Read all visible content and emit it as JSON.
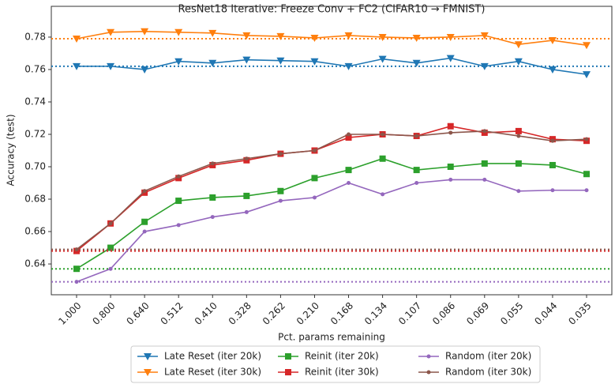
{
  "chart_data": {
    "type": "line",
    "title": "ResNet18 Iterative: Freeze Conv + FC2 (CIFAR10 → FMNIST)",
    "xlabel": "Pct. params remaining",
    "ylabel": "Accuracy (test)",
    "categories": [
      "1.000",
      "0.800",
      "0.640",
      "0.512",
      "0.410",
      "0.328",
      "0.262",
      "0.210",
      "0.168",
      "0.134",
      "0.107",
      "0.086",
      "0.069",
      "0.055",
      "0.044",
      "0.035"
    ],
    "ylim": [
      0.621,
      0.799
    ],
    "yticks": [
      0.64,
      0.66,
      0.68,
      {
        "value": 0.7,
        "label": "0.70"
      },
      0.72,
      0.74,
      0.76,
      0.78
    ],
    "legend": "bottom",
    "series": [
      {
        "name": "Late Reset (iter 20k)",
        "color": "#1f77b4",
        "marker": "triangle-down",
        "baseline": 0.762,
        "values": [
          0.762,
          0.762,
          0.76,
          0.765,
          0.764,
          0.766,
          0.7655,
          0.765,
          0.762,
          0.7665,
          0.764,
          0.767,
          0.762,
          0.765,
          0.76,
          0.757
        ]
      },
      {
        "name": "Late Reset (iter 30k)",
        "color": "#ff7f0e",
        "marker": "triangle-down",
        "baseline": 0.779,
        "values": [
          0.779,
          0.783,
          0.7835,
          0.783,
          0.7825,
          0.781,
          0.7805,
          0.7795,
          0.781,
          0.78,
          0.7795,
          0.78,
          0.781,
          0.7755,
          0.778,
          0.775
        ]
      },
      {
        "name": "Reinit (iter 20k)",
        "color": "#2ca02c",
        "marker": "square",
        "baseline": 0.637,
        "values": [
          0.637,
          0.65,
          0.666,
          0.679,
          0.681,
          0.682,
          0.685,
          0.693,
          0.698,
          0.705,
          0.698,
          0.7,
          0.702,
          0.702,
          0.701,
          0.6955
        ]
      },
      {
        "name": "Reinit (iter 30k)",
        "color": "#d62728",
        "marker": "square",
        "baseline": 0.648,
        "values": [
          0.648,
          0.665,
          0.684,
          0.693,
          0.701,
          0.704,
          0.708,
          0.71,
          0.718,
          0.72,
          0.719,
          0.725,
          0.721,
          0.722,
          0.717,
          0.716
        ]
      },
      {
        "name": "Random (iter 20k)",
        "color": "#9467bd",
        "marker": "dot",
        "baseline": 0.629,
        "values": [
          0.629,
          0.637,
          0.66,
          0.664,
          0.669,
          0.672,
          0.679,
          0.681,
          0.69,
          0.683,
          0.69,
          0.692,
          0.692,
          0.685,
          0.6855,
          0.6855
        ]
      },
      {
        "name": "Random (iter 30k)",
        "color": "#8c564b",
        "marker": "dot",
        "baseline": 0.649,
        "values": [
          0.649,
          0.665,
          0.685,
          0.694,
          0.702,
          0.705,
          0.708,
          0.71,
          0.72,
          0.72,
          0.719,
          0.721,
          0.722,
          0.719,
          0.716,
          0.717
        ]
      }
    ]
  }
}
